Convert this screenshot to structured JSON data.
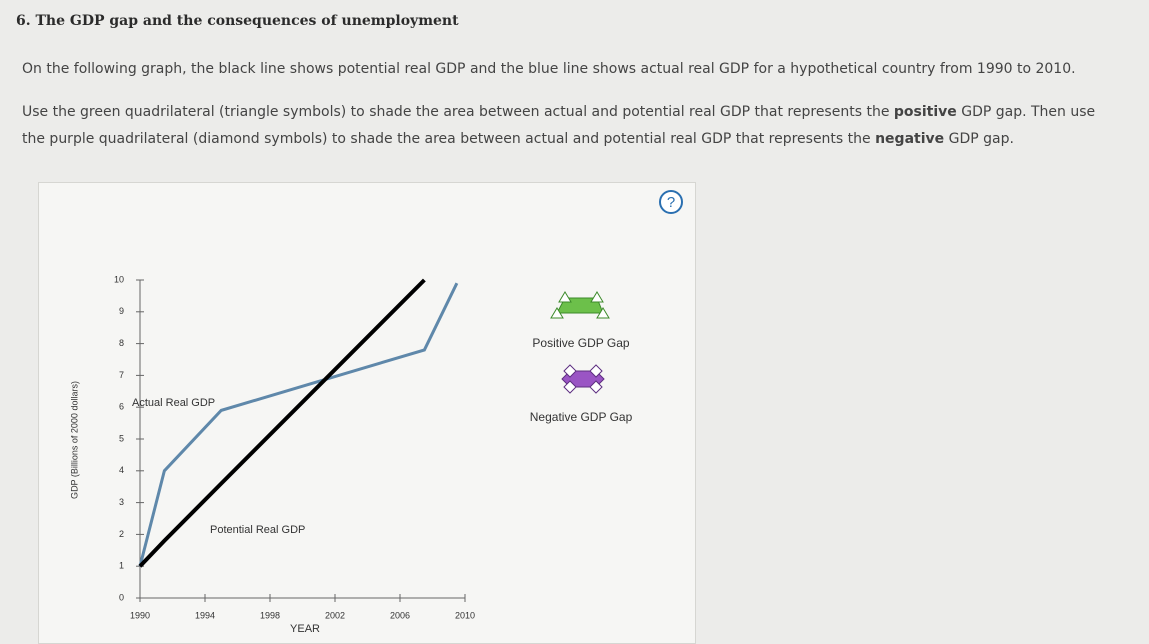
{
  "header": {
    "title": "6. The GDP gap and the consequences of unemployment"
  },
  "instructions": {
    "intro": "On the following graph, the black line shows potential real GDP and the blue line shows actual real GDP for a hypothetical country from 1990 to 2010.",
    "parts": [
      "Use the green quadrilateral (triangle symbols) to shade the area between actual and potential real GDP that represents the ",
      "positive",
      " GDP gap. Then use the purple quadrilateral (diamond symbols) to shade the area between actual and potential real GDP that represents the ",
      "negative",
      " GDP gap."
    ]
  },
  "help": "?",
  "tools": {
    "positive": "Positive GDP Gap",
    "negative": "Negative GDP Gap"
  },
  "chart_data": {
    "type": "line",
    "x_label": "YEAR",
    "y_label": "GDP (Billions of 2000 dollars)",
    "x": [
      1990,
      1991.5,
      1995,
      2007.5,
      2009.5
    ],
    "series": [
      {
        "name": "Actual Real GDP",
        "color": "#5f88aa",
        "values": [
          1,
          4,
          5.9,
          7.8,
          9.9
        ]
      },
      {
        "name": "Potential Real GDP",
        "color": "#000000",
        "values": [
          1,
          1.8,
          3.6,
          10,
          null
        ]
      }
    ],
    "xlim": [
      1990,
      2010
    ],
    "xticks": [
      1990,
      1994,
      1998,
      2002,
      2006,
      2010
    ],
    "ylim": [
      0,
      10
    ],
    "yticks": [
      0,
      1,
      2,
      3,
      4,
      5,
      6,
      7,
      8,
      9,
      10
    ]
  }
}
